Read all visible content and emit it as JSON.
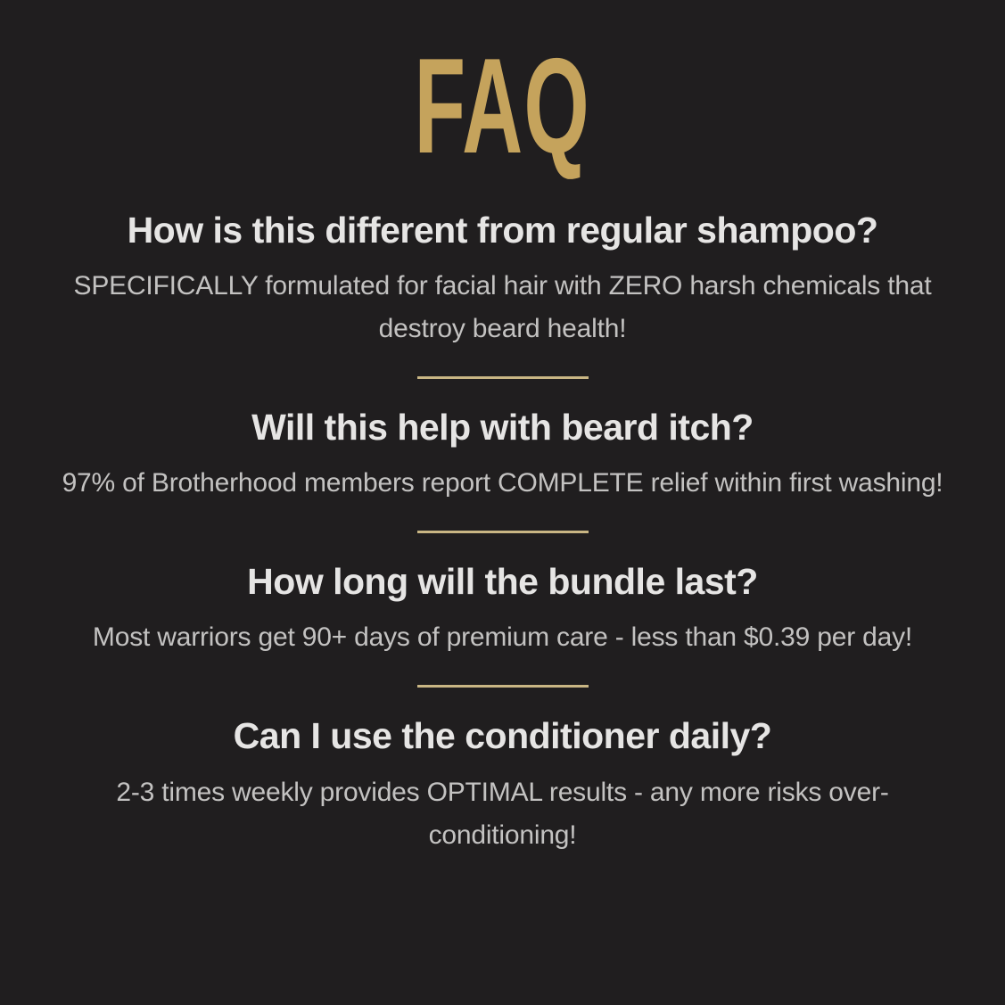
{
  "title": "FAQ",
  "colors": {
    "background": "#201E1F",
    "title_gold": "#C5A35C",
    "divider_gold": "#C9B684",
    "question_text": "#E6E5E4",
    "answer_text": "#C3C2C1"
  },
  "faqs": [
    {
      "question": "How is this different from regular shampoo?",
      "answer": "SPECIFICALLY formulated for facial hair with ZERO harsh chemicals that destroy beard health!"
    },
    {
      "question": "Will this help with beard itch?",
      "answer": "97% of Brotherhood members report COMPLETE relief within first washing!"
    },
    {
      "question": "How long will the bundle last?",
      "answer": "Most warriors get 90+ days of premium care - less than $0.39 per day!"
    },
    {
      "question": "Can I use the conditioner daily?",
      "answer": "2-3 times weekly provides OPTIMAL results - any more risks over-conditioning!"
    }
  ]
}
